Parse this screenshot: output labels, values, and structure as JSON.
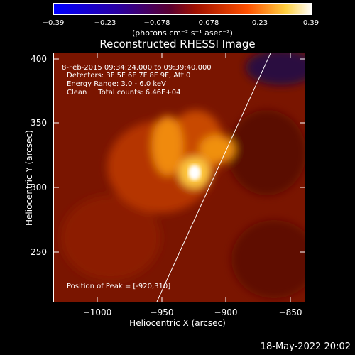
{
  "colorbar": {
    "ticks": [
      "−0.39",
      "−0.23",
      "−0.078",
      "0.078",
      "0.23",
      "0.39"
    ],
    "units": "(photons cm⁻² s⁻¹ asec⁻²)"
  },
  "title": "Reconstructed RHESSI Image",
  "info": {
    "time_range": "8-Feb-2015 09:34:24.000 to 09:39:40.000",
    "detectors": "Detectors: 3F 5F 6F 7F 8F 9F, Att 0",
    "energy": "Energy Range: 3.0 - 6.0 keV",
    "clean": "Clean     Total counts: 6.46E+04",
    "peak": "Position of Peak = [-920,310]"
  },
  "axes": {
    "xlabel": "Heliocentric X (arcsec)",
    "ylabel": "Heliocentric Y (arcsec)",
    "xticks": [
      "−1000",
      "−950",
      "−900",
      "−850"
    ],
    "yticks": [
      "400",
      "350",
      "300",
      "250"
    ]
  },
  "footer_date": "18-May-2022 20:02",
  "chart_data": {
    "type": "heatmap",
    "xlabel": "Heliocentric X (arcsec)",
    "ylabel": "Heliocentric Y (arcsec)",
    "xlim": [
      -1030,
      -835
    ],
    "ylim": [
      210,
      405
    ],
    "zlim": [
      -0.39,
      0.39
    ],
    "peak": [
      -920,
      310
    ],
    "colormap": "black-blue-purple-red-orange-yellow-white"
  }
}
